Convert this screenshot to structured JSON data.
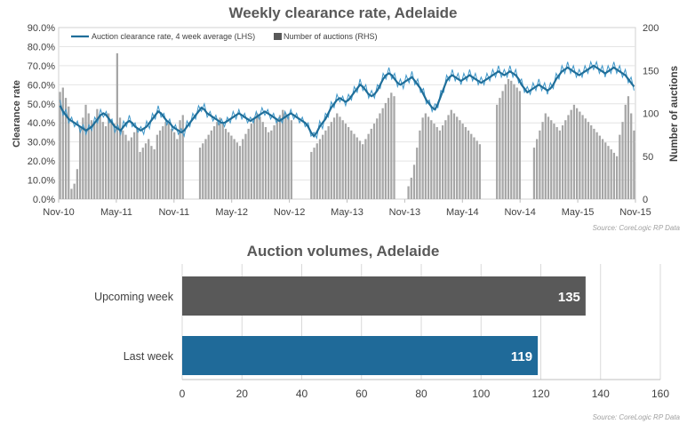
{
  "chart_data": [
    {
      "type": "line",
      "title": "Weekly clearance rate, Adelaide",
      "ylabel": "Clearance rate",
      "y2label": "Number of auctions",
      "source": "Source: CoreLogic  RP Data",
      "ylim": [
        0,
        90
      ],
      "y2lim": [
        0,
        200
      ],
      "yticks": [
        "0.0%",
        "10.0%",
        "20.0%",
        "30.0%",
        "40.0%",
        "50.0%",
        "60.0%",
        "70.0%",
        "80.0%",
        "90.0%"
      ],
      "y2ticks": [
        "0",
        "50",
        "100",
        "150",
        "200"
      ],
      "xticks": [
        "Nov-10",
        "May-11",
        "Nov-11",
        "May-12",
        "Nov-12",
        "May-13",
        "Nov-13",
        "May-14",
        "Nov-14",
        "May-15",
        "Nov-15"
      ],
      "legend_position": "top-left",
      "series": [
        {
          "name": "Auction clearance rate, 4 week average (LHS)",
          "kind": "line",
          "axis": "left",
          "color": "#1F6E99",
          "values": [
            49,
            46,
            44,
            42,
            41,
            40,
            39,
            38,
            37,
            36,
            37,
            38,
            40,
            42,
            44,
            45,
            44,
            42,
            40,
            38,
            37,
            36,
            38,
            40,
            41,
            40,
            38,
            37,
            36,
            37,
            38,
            40,
            42,
            44,
            46,
            45,
            43,
            41,
            40,
            38,
            37,
            36,
            35,
            36,
            38,
            40,
            42,
            44,
            46,
            48,
            47,
            45,
            44,
            43,
            42,
            41,
            40,
            40,
            41,
            42,
            43,
            44,
            45,
            44,
            43,
            42,
            41,
            42,
            43,
            44,
            45,
            46,
            45,
            44,
            43,
            42,
            41,
            42,
            43,
            44,
            45,
            44,
            43,
            42,
            41,
            40,
            38,
            35,
            33,
            35,
            38,
            40,
            42,
            45,
            48,
            50,
            52,
            53,
            52,
            51,
            52,
            54,
            56,
            58,
            60,
            59,
            57,
            55,
            54,
            55,
            57,
            60,
            63,
            65,
            66,
            65,
            63,
            61,
            60,
            61,
            62,
            63,
            64,
            62,
            60,
            58,
            55,
            52,
            50,
            48,
            47,
            50,
            54,
            58,
            62,
            64,
            65,
            64,
            63,
            62,
            63,
            64,
            65,
            64,
            63,
            62,
            61,
            62,
            63,
            64,
            65,
            66,
            67,
            66,
            65,
            66,
            67,
            66,
            65,
            63,
            60,
            58,
            56,
            57,
            58,
            59,
            60,
            59,
            58,
            57,
            58,
            60,
            63,
            65,
            67,
            68,
            69,
            68,
            67,
            66,
            65,
            66,
            67,
            68,
            69,
            70,
            69,
            68,
            67,
            66,
            67,
            68,
            69,
            68,
            67,
            66,
            65,
            63,
            61,
            59
          ]
        },
        {
          "name": "",
          "kind": "line-thin",
          "axis": "left",
          "color": "#3F97C9",
          "values": [
            52,
            44,
            47,
            40,
            43,
            38,
            41,
            35,
            39,
            34,
            39,
            36,
            43,
            40,
            47,
            43,
            46,
            40,
            42,
            35,
            39,
            34,
            41,
            38,
            44,
            38,
            40,
            35,
            38,
            34,
            41,
            37,
            45,
            42,
            49,
            43,
            45,
            39,
            42,
            36,
            39,
            34,
            37,
            33,
            41,
            38,
            45,
            42,
            49,
            46,
            50,
            43,
            46,
            41,
            44,
            39,
            42,
            38,
            43,
            40,
            46,
            42,
            47,
            42,
            45,
            40,
            43,
            40,
            46,
            42,
            48,
            44,
            47,
            42,
            45,
            40,
            43,
            40,
            46,
            42,
            47,
            42,
            45,
            40,
            43,
            38,
            40,
            33,
            35,
            32,
            41,
            37,
            45,
            43,
            51,
            48,
            55,
            51,
            54,
            49,
            55,
            52,
            59,
            56,
            63,
            57,
            60,
            53,
            57,
            53,
            60,
            58,
            66,
            63,
            69,
            63,
            66,
            59,
            63,
            58,
            65,
            61,
            67,
            60,
            63,
            56,
            58,
            50,
            52,
            46,
            50,
            48,
            57,
            56,
            65,
            62,
            68,
            62,
            66,
            60,
            66,
            62,
            68,
            62,
            66,
            60,
            64,
            60,
            66,
            62,
            68,
            64,
            70,
            64,
            68,
            64,
            70,
            64,
            68,
            61,
            63,
            56,
            59,
            55,
            61,
            57,
            63,
            57,
            61,
            55,
            61,
            58,
            66,
            63,
            70,
            66,
            72,
            66,
            70,
            64,
            68,
            64,
            70,
            66,
            72,
            68,
            72,
            66,
            70,
            64,
            70,
            66,
            72,
            66,
            70,
            64,
            68,
            61,
            64,
            57
          ]
        },
        {
          "name": "Number of auctions (RHS)",
          "kind": "bar",
          "axis": "right",
          "color": "#A6A6A6",
          "values": [
            125,
            130,
            118,
            108,
            12,
            18,
            35,
            85,
            95,
            110,
            100,
            92,
            88,
            105,
            98,
            90,
            85,
            100,
            92,
            88,
            170,
            95,
            80,
            75,
            68,
            72,
            78,
            82,
            55,
            60,
            65,
            70,
            62,
            58,
            75,
            80,
            85,
            90,
            88,
            82,
            78,
            70,
            92,
            98,
            0,
            0,
            0,
            0,
            0,
            60,
            65,
            70,
            75,
            80,
            85,
            90,
            95,
            88,
            82,
            78,
            74,
            70,
            66,
            62,
            70,
            76,
            82,
            88,
            94,
            100,
            96,
            90,
            84,
            78,
            80,
            86,
            92,
            98,
            104,
            100,
            96,
            92,
            0,
            0,
            0,
            0,
            0,
            0,
            55,
            60,
            65,
            70,
            75,
            80,
            85,
            90,
            95,
            100,
            96,
            92,
            88,
            84,
            80,
            76,
            72,
            68,
            64,
            70,
            76,
            82,
            88,
            94,
            100,
            106,
            112,
            118,
            124,
            120,
            0,
            0,
            0,
            0,
            15,
            25,
            40,
            60,
            80,
            95,
            100,
            96,
            92,
            88,
            84,
            80,
            86,
            92,
            98,
            104,
            100,
            96,
            92,
            88,
            84,
            80,
            76,
            72,
            68,
            64,
            0,
            0,
            0,
            0,
            0,
            110,
            118,
            126,
            134,
            140,
            138,
            134,
            130,
            126,
            0,
            0,
            0,
            0,
            60,
            70,
            80,
            90,
            100,
            96,
            92,
            88,
            84,
            80,
            86,
            92,
            98,
            104,
            110,
            106,
            102,
            98,
            94,
            90,
            86,
            82,
            78,
            74,
            70,
            66,
            62,
            58,
            54,
            50,
            75,
            90,
            110,
            120,
            100,
            80
          ]
        }
      ]
    },
    {
      "type": "bar",
      "orientation": "horizontal",
      "title": "Auction volumes, Adelaide",
      "source": "Source: CoreLogic  RP Data",
      "categories": [
        "Upcoming week",
        "Last week"
      ],
      "values": [
        135,
        119
      ],
      "value_labels": [
        "135",
        "119"
      ],
      "colors": [
        "#595959",
        "#1F6A99"
      ],
      "xlim": [
        0,
        160
      ],
      "xticks": [
        "0",
        "20",
        "40",
        "60",
        "80",
        "100",
        "120",
        "140",
        "160"
      ],
      "grid": true
    }
  ]
}
